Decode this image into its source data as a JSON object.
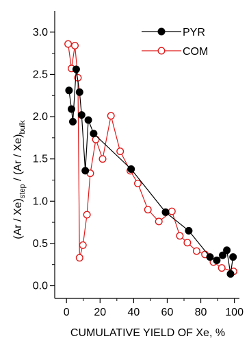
{
  "chart_data": {
    "type": "line",
    "xlabel": "CUMULATIVE YIELD OF Xe, %",
    "ylabel": {
      "part1": "(Ar / Xe)",
      "sub1": "step",
      "part2": " / (Ar / Xe)",
      "sub2": "bulk"
    },
    "xlim": [
      -7,
      103
    ],
    "ylim": [
      -0.15,
      3.25
    ],
    "xticks": [
      0,
      20,
      40,
      60,
      80,
      100
    ],
    "xtick_labels": [
      "0",
      "20",
      "40",
      "60",
      "80",
      "100"
    ],
    "yticks": [
      0.0,
      0.5,
      1.0,
      1.5,
      2.0,
      2.5,
      3.0
    ],
    "ytick_labels": [
      "0.0",
      "0.5",
      "1.0",
      "1.5",
      "2.0",
      "2.5",
      "3.0"
    ],
    "legend_position": "top-right",
    "series": [
      {
        "name": "PYR",
        "color": "#000000",
        "marker": "filled-circle",
        "points": [
          [
            1.5,
            2.31
          ],
          [
            3.0,
            2.09
          ],
          [
            3.8,
            1.94
          ],
          [
            5.8,
            2.56
          ],
          [
            7.8,
            2.29
          ],
          [
            9.0,
            2.02
          ],
          [
            11.2,
            1.36
          ],
          [
            13.0,
            1.96
          ],
          [
            16.2,
            1.8
          ],
          [
            38.5,
            1.38
          ],
          [
            59.0,
            0.87
          ],
          [
            72.8,
            0.65
          ],
          [
            85.5,
            0.34
          ],
          [
            89.5,
            0.3
          ],
          [
            93.0,
            0.36
          ],
          [
            95.5,
            0.42
          ],
          [
            97.7,
            0.14
          ],
          [
            99.2,
            0.34
          ]
        ]
      },
      {
        "name": "COM",
        "color": "#e01a1a",
        "marker": "open-circle",
        "points": [
          [
            1.0,
            2.86
          ],
          [
            3.0,
            2.57
          ],
          [
            5.0,
            2.84
          ],
          [
            6.8,
            2.46
          ],
          [
            7.8,
            0.33
          ],
          [
            9.8,
            0.48
          ],
          [
            12.2,
            0.84
          ],
          [
            14.2,
            1.33
          ],
          [
            17.5,
            1.73
          ],
          [
            21.5,
            1.5
          ],
          [
            26.5,
            2.01
          ],
          [
            32.0,
            1.59
          ],
          [
            38.0,
            1.36
          ],
          [
            42.5,
            1.21
          ],
          [
            48.5,
            0.9
          ],
          [
            55.0,
            0.76
          ],
          [
            62.8,
            0.88
          ],
          [
            67.5,
            0.59
          ],
          [
            72.0,
            0.51
          ],
          [
            77.5,
            0.41
          ],
          [
            82.5,
            0.37
          ],
          [
            87.5,
            0.28
          ],
          [
            92.5,
            0.21
          ],
          [
            99.5,
            0.17
          ]
        ]
      }
    ]
  }
}
